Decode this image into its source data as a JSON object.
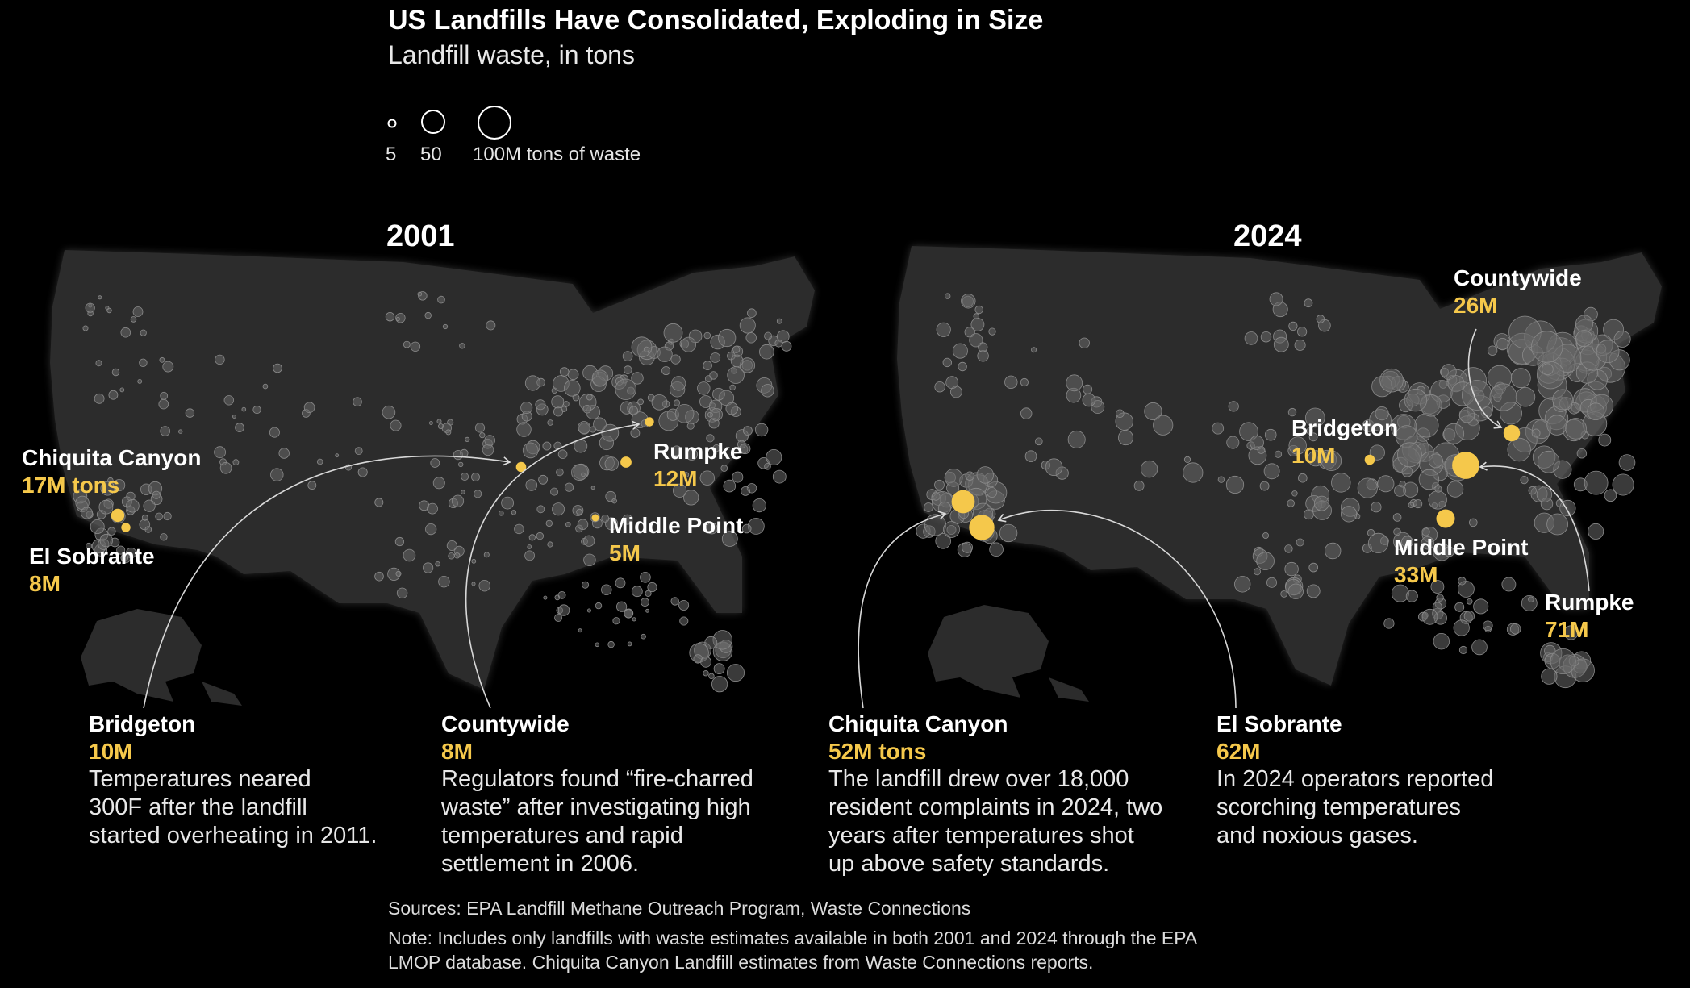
{
  "title": "US Landfills Have Consolidated, Exploding in Size",
  "subtitle": "Landfill waste, in tons",
  "legend": {
    "labels": [
      "5",
      "50",
      "100M tons of waste"
    ],
    "values": [
      5,
      50,
      100
    ]
  },
  "colors": {
    "background": "#000000",
    "land": "#2c2c2c",
    "bubble": "#6a6a6a",
    "highlight": "#f5c84b",
    "value_text": "#f5c84b"
  },
  "maps": [
    {
      "year": "2001",
      "highlights": [
        {
          "name": "Chiquita Canyon",
          "value": "17M tons",
          "tons_m": 17
        },
        {
          "name": "El Sobrante",
          "value": "8M",
          "tons_m": 8
        },
        {
          "name": "Bridgeton",
          "value": "10M",
          "tons_m": 10,
          "note_lines": [
            "Temperatures neared",
            "300F after the landfill",
            "started overheating in 2011."
          ]
        },
        {
          "name": "Countywide",
          "value": "8M",
          "tons_m": 8,
          "note_lines": [
            "Regulators found “fire-charred",
            "waste” after investigating high",
            "temperatures and rapid",
            "settlement in 2006."
          ]
        },
        {
          "name": "Rumpke",
          "value": "12M",
          "tons_m": 12
        },
        {
          "name": "Middle Point",
          "value": "5M",
          "tons_m": 5
        }
      ]
    },
    {
      "year": "2024",
      "highlights": [
        {
          "name": "Countywide",
          "value": "26M",
          "tons_m": 26
        },
        {
          "name": "Bridgeton",
          "value": "10M",
          "tons_m": 10
        },
        {
          "name": "Middle Point",
          "value": "33M",
          "tons_m": 33
        },
        {
          "name": "Rumpke",
          "value": "71M",
          "tons_m": 71
        },
        {
          "name": "Chiquita Canyon",
          "value": "52M tons",
          "tons_m": 52,
          "note_lines": [
            "The landfill drew over 18,000",
            "resident complaints in 2024, two",
            "years after temperatures shot",
            "up above safety standards."
          ]
        },
        {
          "name": "El Sobrante",
          "value": "62M",
          "tons_m": 62,
          "note_lines": [
            "In 2024 operators reported",
            "scorching temperatures",
            "and noxious gases."
          ]
        }
      ]
    }
  ],
  "sources": "Sources: EPA Landfill Methane Outreach Program, Waste Connections",
  "note_lines": [
    "Note: Includes only landfills with waste estimates available in both 2001 and 2024 through the EPA",
    "LMOP database. Chiquita Canyon Landfill estimates from Waste Connections reports."
  ]
}
